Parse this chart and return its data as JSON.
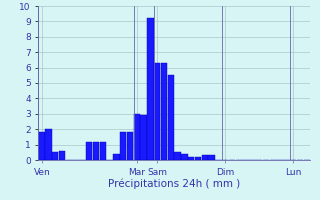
{
  "bar_values": [
    1.8,
    2.0,
    0.5,
    0.6,
    0.0,
    0.0,
    0.0,
    1.2,
    1.2,
    1.2,
    0.0,
    0.4,
    1.8,
    1.8,
    3.0,
    2.9,
    9.2,
    6.3,
    6.3,
    5.5,
    0.5,
    0.4,
    0.2,
    0.2,
    0.3,
    0.3,
    0.0,
    0.0,
    0.0,
    0.0,
    0.0,
    0.0,
    0.0,
    0.0,
    0.0,
    0.0,
    0.0,
    0.0,
    0.0,
    0.0
  ],
  "n_bars": 40,
  "bar_color": "#1a1aff",
  "bar_edge_color": "#0000bb",
  "background_color": "#d8f5f5",
  "grid_color": "#a8c8c8",
  "axis_color": "#6666aa",
  "text_color": "#3333aa",
  "xlabel": "Précipitations 24h ( mm )",
  "ylim": [
    0,
    10
  ],
  "yticks": [
    0,
    1,
    2,
    3,
    4,
    5,
    6,
    7,
    8,
    9,
    10
  ],
  "day_labels": [
    "Ven",
    "Mar",
    "Sam",
    "Dim",
    "Lun"
  ],
  "day_positions": [
    0.5,
    14.5,
    17.5,
    27.5,
    37.5
  ],
  "day_line_positions": [
    0,
    14,
    17,
    27,
    37
  ],
  "label_fontsize": 7.5,
  "tick_fontsize": 6.5
}
